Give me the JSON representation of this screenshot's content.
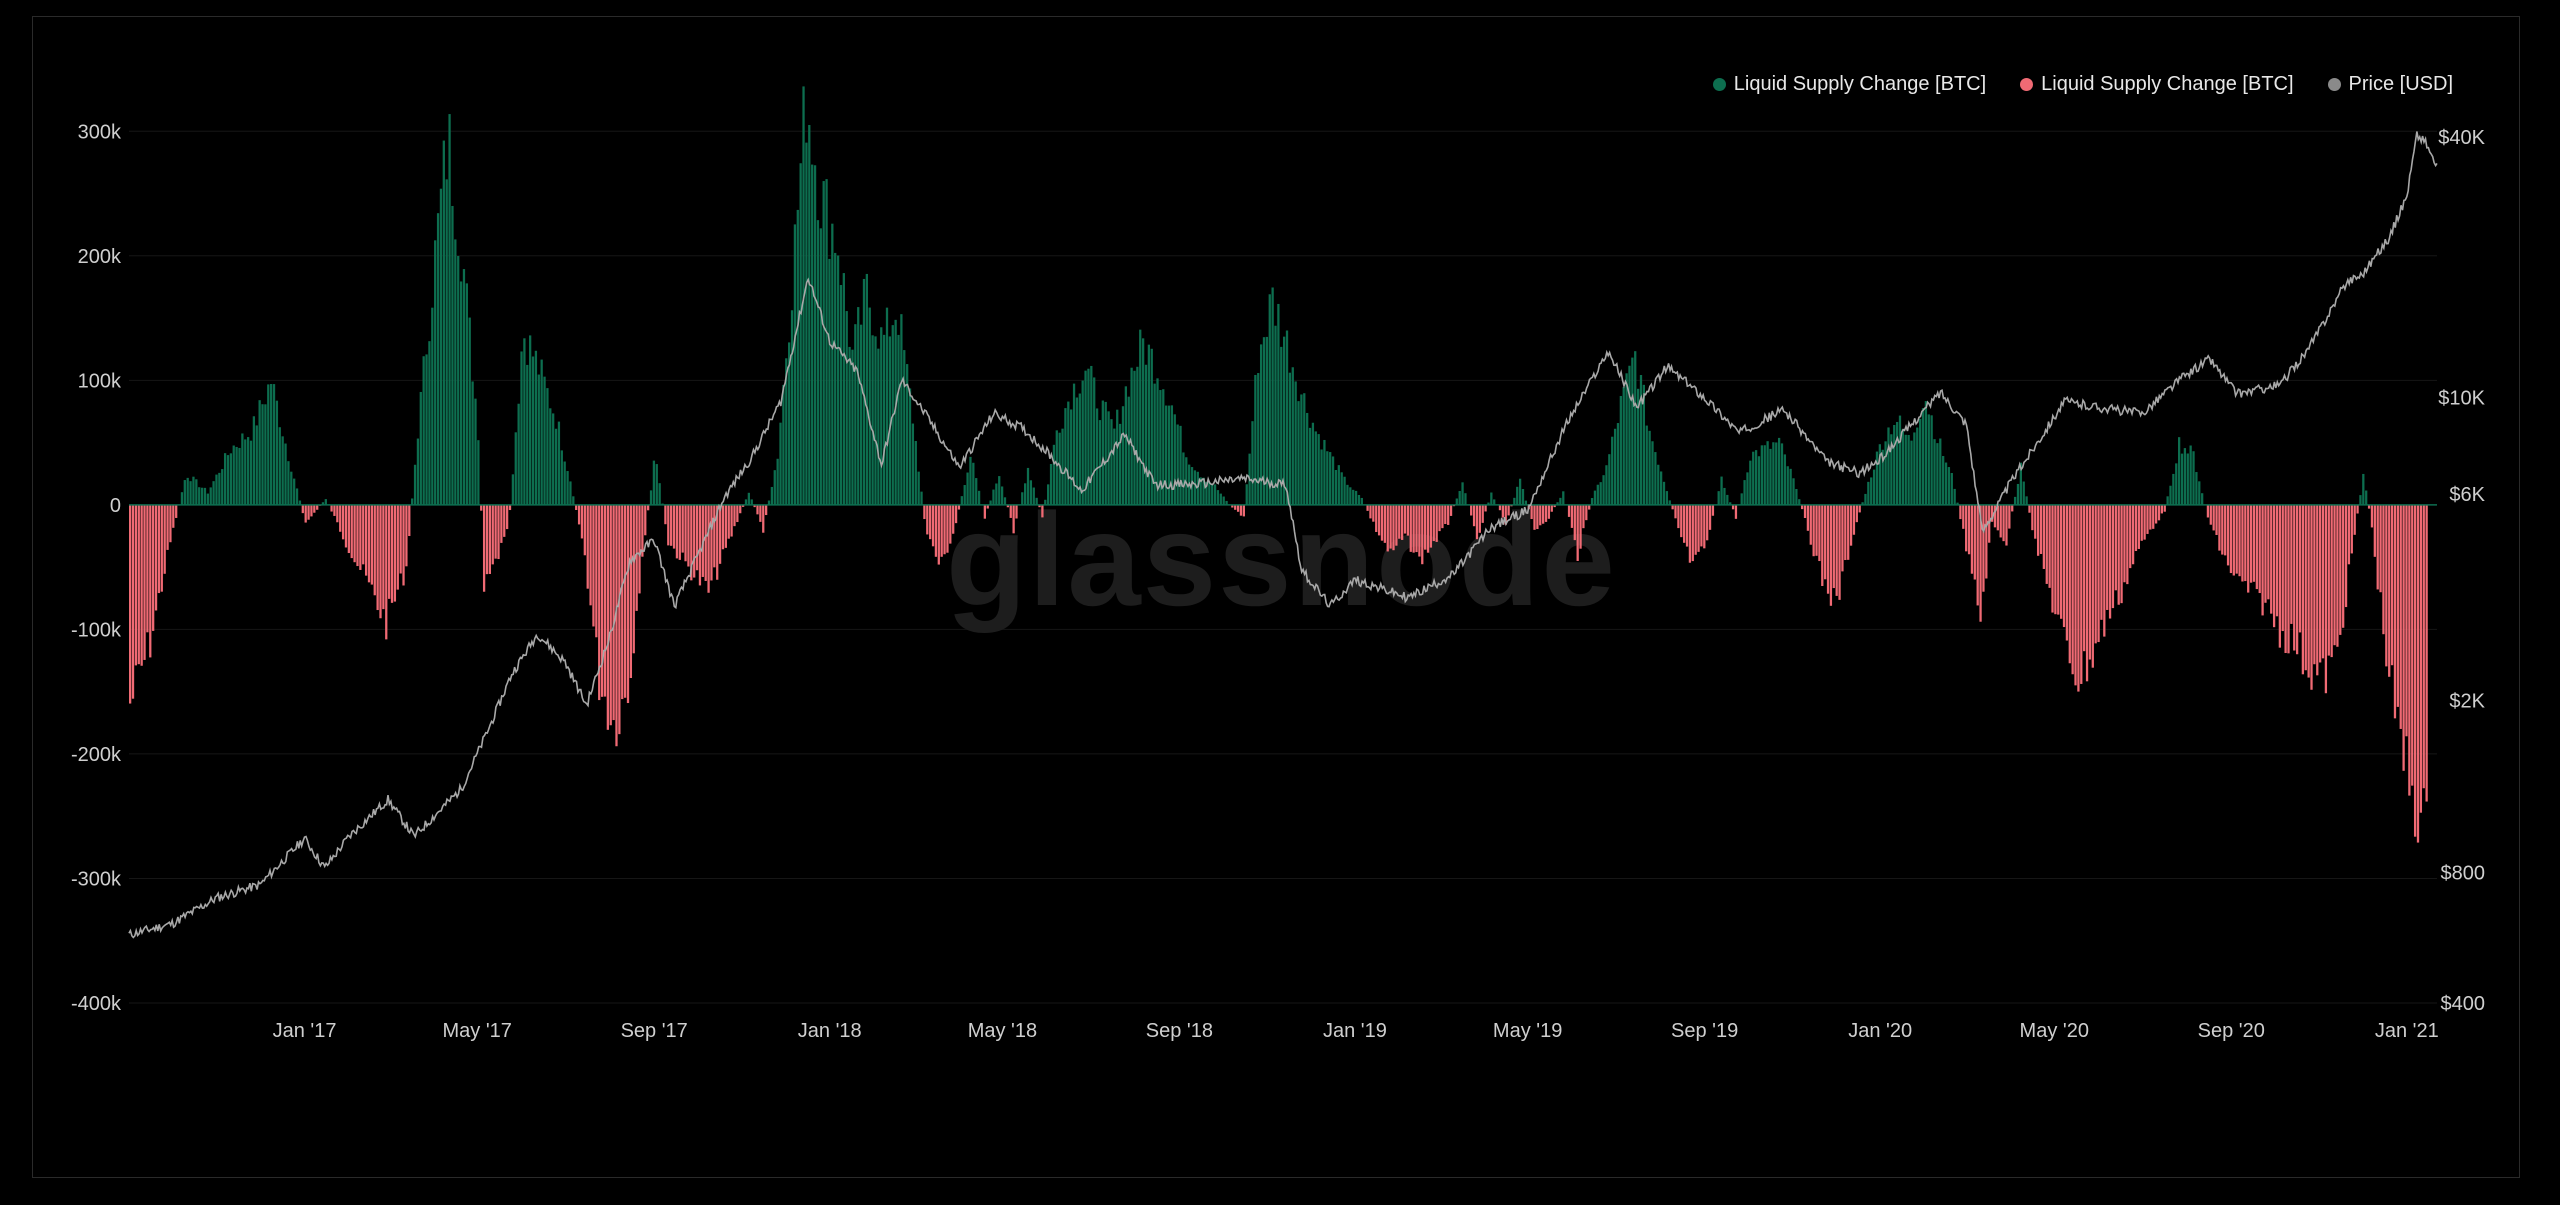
{
  "watermark": "glassnode",
  "legend": [
    {
      "label": "Liquid Supply Change [BTC]",
      "color": "#0d6e4f"
    },
    {
      "label": "Liquid Supply Change [BTC]",
      "color": "#f06a74"
    },
    {
      "label": "Price [USD]",
      "color": "#8a8a8a"
    }
  ],
  "chart_data": {
    "type": "bar",
    "title": "",
    "x_range": [
      "2016-09-01",
      "2021-01-22"
    ],
    "x_ticks": [
      {
        "date": "2017-01-01",
        "label": "Jan '17"
      },
      {
        "date": "2017-05-01",
        "label": "May '17"
      },
      {
        "date": "2017-09-01",
        "label": "Sep '17"
      },
      {
        "date": "2018-01-01",
        "label": "Jan '18"
      },
      {
        "date": "2018-05-01",
        "label": "May '18"
      },
      {
        "date": "2018-09-01",
        "label": "Sep '18"
      },
      {
        "date": "2019-01-01",
        "label": "Jan '19"
      },
      {
        "date": "2019-05-01",
        "label": "May '19"
      },
      {
        "date": "2019-09-01",
        "label": "Sep '19"
      },
      {
        "date": "2020-01-01",
        "label": "Jan '20"
      },
      {
        "date": "2020-05-01",
        "label": "May '20"
      },
      {
        "date": "2020-09-01",
        "label": "Sep '20"
      },
      {
        "date": "2021-01-01",
        "label": "Jan '21"
      }
    ],
    "y_left": {
      "range": [
        -400000,
        300000
      ],
      "ticks": [
        {
          "value": 300000,
          "label": "300k"
        },
        {
          "value": 200000,
          "label": "200k"
        },
        {
          "value": 100000,
          "label": "100k"
        },
        {
          "value": 0,
          "label": "0"
        },
        {
          "value": -100000,
          "label": "-100k"
        },
        {
          "value": -200000,
          "label": "-200k"
        },
        {
          "value": -300000,
          "label": "-300k"
        },
        {
          "value": -400000,
          "label": "-400k"
        }
      ]
    },
    "y_right": {
      "scale": "log",
      "range": [
        400,
        40000
      ],
      "ticks": [
        {
          "value": 40000,
          "label": "$40K"
        },
        {
          "value": 10000,
          "label": "$10K"
        },
        {
          "value": 6000,
          "label": "$6K"
        },
        {
          "value": 2000,
          "label": "$2K"
        },
        {
          "value": 800,
          "label": "$800"
        },
        {
          "value": 400,
          "label": "$400"
        }
      ]
    },
    "grid": true,
    "legend_position": "top-right",
    "series": [
      {
        "name": "Liquid Supply Change [BTC]",
        "kind": "bar",
        "axis": "left",
        "color_positive": "#0d6e4f",
        "color_negative": "#f06a74",
        "points": [
          [
            "2016-09-01",
            -160000
          ],
          [
            "2016-09-15",
            -110000
          ],
          [
            "2016-09-29",
            -30000
          ],
          [
            "2016-10-10",
            25000
          ],
          [
            "2016-10-25",
            10000
          ],
          [
            "2016-11-10",
            45000
          ],
          [
            "2016-11-25",
            60000
          ],
          [
            "2016-12-08",
            100000
          ],
          [
            "2016-12-20",
            40000
          ],
          [
            "2017-01-01",
            -15000
          ],
          [
            "2017-01-15",
            5000
          ],
          [
            "2017-01-29",
            -30000
          ],
          [
            "2017-02-12",
            -60000
          ],
          [
            "2017-02-26",
            -95000
          ],
          [
            "2017-03-12",
            -50000
          ],
          [
            "2017-03-20",
            60000
          ],
          [
            "2017-04-01",
            200000
          ],
          [
            "2017-04-10",
            295000
          ],
          [
            "2017-04-20",
            200000
          ],
          [
            "2017-05-01",
            60000
          ],
          [
            "2017-05-05",
            -70000
          ],
          [
            "2017-05-15",
            -40000
          ],
          [
            "2017-05-22",
            -20000
          ],
          [
            "2017-06-01",
            140000
          ],
          [
            "2017-06-12",
            110000
          ],
          [
            "2017-06-24",
            70000
          ],
          [
            "2017-07-04",
            20000
          ],
          [
            "2017-07-14",
            -40000
          ],
          [
            "2017-07-24",
            -140000
          ],
          [
            "2017-08-03",
            -175000
          ],
          [
            "2017-08-13",
            -150000
          ],
          [
            "2017-08-23",
            -40000
          ],
          [
            "2017-09-01",
            40000
          ],
          [
            "2017-09-10",
            -30000
          ],
          [
            "2017-09-24",
            -50000
          ],
          [
            "2017-10-08",
            -70000
          ],
          [
            "2017-10-22",
            -30000
          ],
          [
            "2017-11-05",
            10000
          ],
          [
            "2017-11-15",
            -20000
          ],
          [
            "2017-11-25",
            40000
          ],
          [
            "2017-12-05",
            180000
          ],
          [
            "2017-12-15",
            330000
          ],
          [
            "2017-12-25",
            250000
          ],
          [
            "2018-01-06",
            210000
          ],
          [
            "2018-01-16",
            120000
          ],
          [
            "2018-01-26",
            170000
          ],
          [
            "2018-02-06",
            130000
          ],
          [
            "2018-02-16",
            160000
          ],
          [
            "2018-02-26",
            80000
          ],
          [
            "2018-03-08",
            -20000
          ],
          [
            "2018-03-18",
            -50000
          ],
          [
            "2018-03-28",
            -20000
          ],
          [
            "2018-04-08",
            40000
          ],
          [
            "2018-04-18",
            -10000
          ],
          [
            "2018-04-28",
            25000
          ],
          [
            "2018-05-08",
            -20000
          ],
          [
            "2018-05-18",
            30000
          ],
          [
            "2018-05-28",
            -10000
          ],
          [
            "2018-06-07",
            60000
          ],
          [
            "2018-06-17",
            90000
          ],
          [
            "2018-06-27",
            110000
          ],
          [
            "2018-07-07",
            80000
          ],
          [
            "2018-07-17",
            60000
          ],
          [
            "2018-07-27",
            100000
          ],
          [
            "2018-08-06",
            130000
          ],
          [
            "2018-08-16",
            110000
          ],
          [
            "2018-08-26",
            80000
          ],
          [
            "2018-09-05",
            40000
          ],
          [
            "2018-09-15",
            25000
          ],
          [
            "2018-09-25",
            15000
          ],
          [
            "2018-10-05",
            0
          ],
          [
            "2018-10-15",
            -10000
          ],
          [
            "2018-10-25",
            120000
          ],
          [
            "2018-11-04",
            165000
          ],
          [
            "2018-11-14",
            130000
          ],
          [
            "2018-11-24",
            90000
          ],
          [
            "2018-12-04",
            60000
          ],
          [
            "2018-12-14",
            40000
          ],
          [
            "2018-12-24",
            20000
          ],
          [
            "2019-01-05",
            5000
          ],
          [
            "2019-01-15",
            -20000
          ],
          [
            "2019-01-25",
            -40000
          ],
          [
            "2019-02-04",
            -25000
          ],
          [
            "2019-02-14",
            -45000
          ],
          [
            "2019-02-24",
            -30000
          ],
          [
            "2019-03-06",
            -15000
          ],
          [
            "2019-03-16",
            20000
          ],
          [
            "2019-03-26",
            -30000
          ],
          [
            "2019-04-05",
            10000
          ],
          [
            "2019-04-15",
            -15000
          ],
          [
            "2019-04-25",
            20000
          ],
          [
            "2019-05-05",
            -20000
          ],
          [
            "2019-05-15",
            -10000
          ],
          [
            "2019-05-25",
            10000
          ],
          [
            "2019-06-04",
            -40000
          ],
          [
            "2019-06-14",
            5000
          ],
          [
            "2019-06-24",
            30000
          ],
          [
            "2019-07-04",
            80000
          ],
          [
            "2019-07-14",
            120000
          ],
          [
            "2019-07-24",
            60000
          ],
          [
            "2019-08-03",
            20000
          ],
          [
            "2019-08-13",
            -20000
          ],
          [
            "2019-08-23",
            -50000
          ],
          [
            "2019-09-02",
            -30000
          ],
          [
            "2019-09-12",
            20000
          ],
          [
            "2019-09-22",
            -10000
          ],
          [
            "2019-10-02",
            40000
          ],
          [
            "2019-10-12",
            45000
          ],
          [
            "2019-10-22",
            50000
          ],
          [
            "2019-11-01",
            20000
          ],
          [
            "2019-11-11",
            -20000
          ],
          [
            "2019-11-21",
            -60000
          ],
          [
            "2019-12-01",
            -80000
          ],
          [
            "2019-12-11",
            -30000
          ],
          [
            "2019-12-21",
            10000
          ],
          [
            "2020-01-01",
            50000
          ],
          [
            "2020-01-11",
            70000
          ],
          [
            "2020-01-21",
            50000
          ],
          [
            "2020-01-31",
            90000
          ],
          [
            "2020-02-10",
            50000
          ],
          [
            "2020-02-20",
            20000
          ],
          [
            "2020-03-01",
            -40000
          ],
          [
            "2020-03-10",
            -90000
          ],
          [
            "2020-03-18",
            -15000
          ],
          [
            "2020-03-28",
            -30000
          ],
          [
            "2020-04-07",
            30000
          ],
          [
            "2020-04-17",
            -30000
          ],
          [
            "2020-04-27",
            -70000
          ],
          [
            "2020-05-07",
            -110000
          ],
          [
            "2020-05-17",
            -140000
          ],
          [
            "2020-05-27",
            -120000
          ],
          [
            "2020-06-06",
            -90000
          ],
          [
            "2020-06-16",
            -70000
          ],
          [
            "2020-06-26",
            -40000
          ],
          [
            "2020-07-06",
            -20000
          ],
          [
            "2020-07-16",
            -5000
          ],
          [
            "2020-07-26",
            50000
          ],
          [
            "2020-08-05",
            40000
          ],
          [
            "2020-08-15",
            -10000
          ],
          [
            "2020-08-25",
            -40000
          ],
          [
            "2020-09-04",
            -60000
          ],
          [
            "2020-09-14",
            -70000
          ],
          [
            "2020-09-24",
            -80000
          ],
          [
            "2020-10-04",
            -100000
          ],
          [
            "2020-10-14",
            -110000
          ],
          [
            "2020-10-24",
            -130000
          ],
          [
            "2020-11-03",
            -140000
          ],
          [
            "2020-11-13",
            -120000
          ],
          [
            "2020-11-23",
            -40000
          ],
          [
            "2020-12-01",
            25000
          ],
          [
            "2020-12-06",
            -10000
          ],
          [
            "2020-12-16",
            -110000
          ],
          [
            "2020-12-26",
            -190000
          ],
          [
            "2021-01-05",
            -230000
          ],
          [
            "2021-01-15",
            -275000
          ]
        ]
      },
      {
        "name": "Price [USD]",
        "kind": "line",
        "axis": "right",
        "color": "#a8a8a8",
        "points": [
          [
            "2016-09-01",
            575
          ],
          [
            "2016-10-01",
            610
          ],
          [
            "2016-11-01",
            700
          ],
          [
            "2016-12-01",
            750
          ],
          [
            "2017-01-01",
            960
          ],
          [
            "2017-01-15",
            820
          ],
          [
            "2017-02-01",
            970
          ],
          [
            "2017-02-28",
            1180
          ],
          [
            "2017-03-18",
            970
          ],
          [
            "2017-04-01",
            1080
          ],
          [
            "2017-04-20",
            1250
          ],
          [
            "2017-05-10",
            1750
          ],
          [
            "2017-05-25",
            2300
          ],
          [
            "2017-06-12",
            2850
          ],
          [
            "2017-07-01",
            2450
          ],
          [
            "2017-07-16",
            1950
          ],
          [
            "2017-08-01",
            2800
          ],
          [
            "2017-08-15",
            4200
          ],
          [
            "2017-09-01",
            4700
          ],
          [
            "2017-09-15",
            3300
          ],
          [
            "2017-10-01",
            4300
          ],
          [
            "2017-10-20",
            5900
          ],
          [
            "2017-11-08",
            7300
          ],
          [
            "2017-11-28",
            9800
          ],
          [
            "2017-12-17",
            19000
          ],
          [
            "2018-01-01",
            13500
          ],
          [
            "2018-01-20",
            11500
          ],
          [
            "2018-02-06",
            7000
          ],
          [
            "2018-02-20",
            11000
          ],
          [
            "2018-03-10",
            9000
          ],
          [
            "2018-04-01",
            6900
          ],
          [
            "2018-04-25",
            9200
          ],
          [
            "2018-05-15",
            8500
          ],
          [
            "2018-06-01",
            7500
          ],
          [
            "2018-06-25",
            6100
          ],
          [
            "2018-07-25",
            8200
          ],
          [
            "2018-08-15",
            6300
          ],
          [
            "2018-09-10",
            6300
          ],
          [
            "2018-10-15",
            6500
          ],
          [
            "2018-11-14",
            6300
          ],
          [
            "2018-11-25",
            4000
          ],
          [
            "2018-12-15",
            3300
          ],
          [
            "2019-01-01",
            3800
          ],
          [
            "2019-02-07",
            3450
          ],
          [
            "2019-03-10",
            3900
          ],
          [
            "2019-04-05",
            5000
          ],
          [
            "2019-05-01",
            5500
          ],
          [
            "2019-05-28",
            8700
          ],
          [
            "2019-06-26",
            12800
          ],
          [
            "2019-07-16",
            9500
          ],
          [
            "2019-08-06",
            11800
          ],
          [
            "2019-09-01",
            10000
          ],
          [
            "2019-09-25",
            8300
          ],
          [
            "2019-10-26",
            9400
          ],
          [
            "2019-11-25",
            7100
          ],
          [
            "2019-12-18",
            6700
          ],
          [
            "2020-01-01",
            7200
          ],
          [
            "2020-02-12",
            10300
          ],
          [
            "2020-03-01",
            8700
          ],
          [
            "2020-03-12",
            4900
          ],
          [
            "2020-04-01",
            6400
          ],
          [
            "2020-05-08",
            9800
          ],
          [
            "2020-06-01",
            9500
          ],
          [
            "2020-07-01",
            9200
          ],
          [
            "2020-07-27",
            11000
          ],
          [
            "2020-08-17",
            12300
          ],
          [
            "2020-09-05",
            10200
          ],
          [
            "2020-10-05",
            10700
          ],
          [
            "2020-10-25",
            13000
          ],
          [
            "2020-11-20",
            18500
          ],
          [
            "2020-12-01",
            19300
          ],
          [
            "2020-12-20",
            23500
          ],
          [
            "2021-01-01",
            29300
          ],
          [
            "2021-01-08",
            40500
          ],
          [
            "2021-01-14",
            39000
          ],
          [
            "2021-01-22",
            34000
          ]
        ]
      }
    ]
  }
}
